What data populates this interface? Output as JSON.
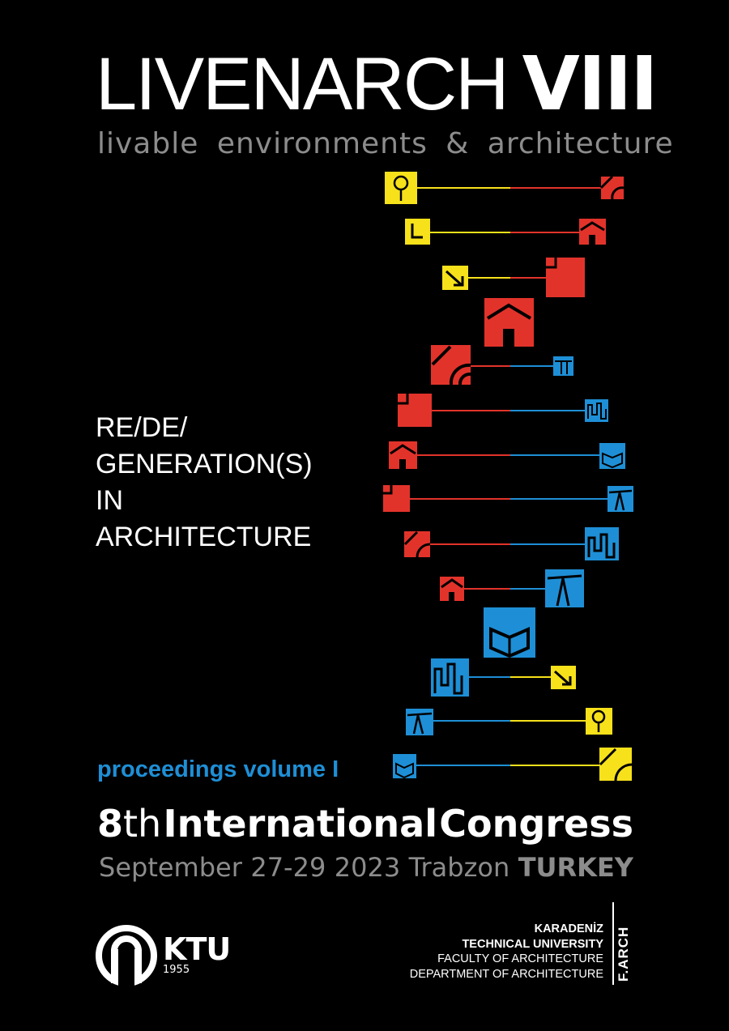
{
  "header": {
    "title_light": "LIVENARCH",
    "title_bold": "VIII",
    "subtitle": "livable environments & architecture"
  },
  "theme": {
    "lines": [
      "RE/DE/",
      "GENERATION(S)",
      "IN",
      "ARCHITECTURE"
    ]
  },
  "proceedings": "proceedings volume I",
  "congress": {
    "number": "8",
    "suffix": "th",
    "word1": "International",
    "word2": "Congress"
  },
  "dates": {
    "month": "September",
    "days": "27-29",
    "year": "2023",
    "city": "Trabzon",
    "country": "TURKEY"
  },
  "ktu": {
    "abbr": "KTU",
    "year": "1955"
  },
  "institution": {
    "line1": "KARADENİZ",
    "line2": "TECHNICAL UNIVERSITY",
    "line3": "FACULTY OF ARCHITECTURE",
    "line4": "DEPARTMENT OF ARCHITECTURE",
    "farch": "F.ARCH"
  },
  "colors": {
    "yellow": "#f7e11a",
    "red": "#e2332b",
    "blue": "#1e8fd6",
    "grey": "#8c8c8c"
  }
}
